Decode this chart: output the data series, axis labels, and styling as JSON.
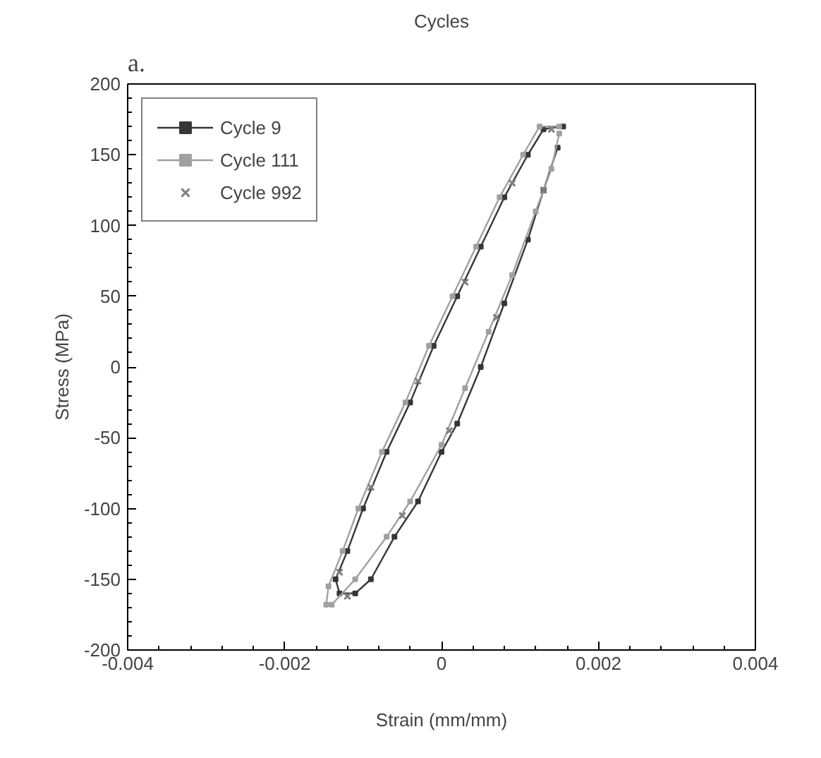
{
  "chart_data": {
    "type": "line",
    "title": "Cycles",
    "xlabel": "Strain (mm/mm)",
    "ylabel": "Stress (MPa)",
    "annotations": [
      "a."
    ],
    "xlim": [
      -0.004,
      0.004
    ],
    "ylim": [
      -200,
      200
    ],
    "xticks": [
      -0.004,
      -0.002,
      0,
      0.002,
      0.004
    ],
    "yticks": [
      -200,
      -150,
      -100,
      -50,
      0,
      50,
      100,
      150,
      200
    ],
    "grid": false,
    "legend": "top left",
    "line_style": "solid",
    "series": [
      {
        "name": "Cycle 9",
        "color": "#363636",
        "marker": "square",
        "x": [
          0.00155,
          0.0013,
          0.0011,
          0.0008,
          0.0005,
          0.0002,
          -0.0001,
          -0.0004,
          -0.0007,
          -0.001,
          -0.0012,
          -0.00135,
          -0.0013,
          -0.0011,
          -0.0009,
          -0.0006,
          -0.0003,
          0.0,
          0.0002,
          0.0005,
          0.0008,
          0.0011,
          0.0013,
          0.00148
        ],
        "values": [
          170,
          168,
          150,
          120,
          85,
          50,
          15,
          -25,
          -60,
          -100,
          -130,
          -150,
          -160,
          -160,
          -150,
          -120,
          -95,
          -60,
          -40,
          0,
          45,
          90,
          125,
          155
        ]
      },
      {
        "name": "Cycle 111",
        "color": "#a0a0a0",
        "marker": "square",
        "x": [
          0.0015,
          0.00125,
          0.00104,
          0.00074,
          0.00044,
          0.00014,
          -0.00016,
          -0.00046,
          -0.00076,
          -0.00106,
          -0.00126,
          -0.00144,
          -0.00147,
          -0.0014,
          -0.0011,
          -0.0007,
          -0.0004,
          0.0,
          0.0003,
          0.0006,
          0.0009,
          0.0012,
          0.0014,
          0.0015
        ],
        "values": [
          170,
          170,
          150,
          120,
          85,
          50,
          15,
          -25,
          -60,
          -100,
          -130,
          -155,
          -168,
          -168,
          -150,
          -120,
          -95,
          -55,
          -15,
          25,
          65,
          110,
          140,
          165
        ]
      },
      {
        "name": "Cycle 992",
        "type": "scatter",
        "color": "#808080",
        "marker": "cross",
        "x": [
          0.0014,
          0.0009,
          0.0003,
          -0.0003,
          -0.0009,
          -0.0013,
          -0.0012,
          -0.0005,
          0.0001,
          0.0007,
          0.0013
        ],
        "values": [
          168,
          130,
          60,
          -10,
          -85,
          -145,
          -162,
          -105,
          -45,
          35,
          125
        ]
      }
    ]
  }
}
